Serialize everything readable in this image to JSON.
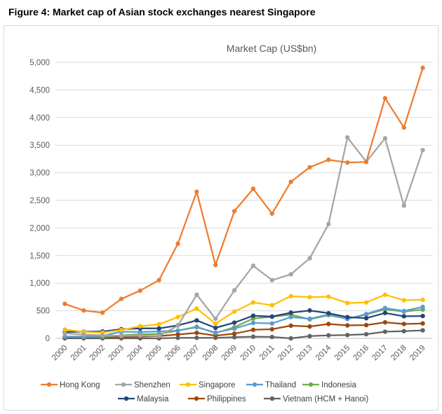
{
  "figure_title": "Figure 4: Market cap of Asian stock exchanges nearest Singapore",
  "chart_data": {
    "type": "line",
    "title": "Market Cap (US$bn)",
    "xlabel": "",
    "ylabel": "",
    "ylim": [
      0,
      5000
    ],
    "yticks": [
      0,
      500,
      1000,
      1500,
      2000,
      2500,
      3000,
      3500,
      4000,
      4500,
      5000
    ],
    "ytick_labels": [
      "0",
      "500",
      "1,000",
      "1,500",
      "2,000",
      "2,500",
      "3,000",
      "3,500",
      "4,000",
      "4,500",
      "5,000"
    ],
    "grid": true,
    "legend_position": "bottom",
    "categories": [
      "2000",
      "2001",
      "2002",
      "2003",
      "2004",
      "2005",
      "2006",
      "2007",
      "2008",
      "2009",
      "2010",
      "2011",
      "2012",
      "2013",
      "2014",
      "2015",
      "2016",
      "2017",
      "2018",
      "2019"
    ],
    "series": [
      {
        "name": "Hong Kong",
        "color": "#ED7D31",
        "values": [
          625,
          505,
          465,
          715,
          865,
          1055,
          1715,
          2655,
          1330,
          2305,
          2710,
          2260,
          2835,
          3100,
          3235,
          3185,
          3195,
          4350,
          3820,
          4900
        ]
      },
      {
        "name": "Shenzhen",
        "color": "#A5A5A5",
        "values": [
          90,
          70,
          55,
          45,
          50,
          45,
          230,
          790,
          355,
          870,
          1315,
          1055,
          1160,
          1450,
          2070,
          3640,
          3200,
          3625,
          2405,
          3410
        ]
      },
      {
        "name": "Singapore",
        "color": "#FFC000",
        "values": [
          160,
          115,
          105,
          150,
          220,
          255,
          385,
          540,
          265,
          485,
          650,
          600,
          765,
          745,
          755,
          640,
          650,
          790,
          690,
          700
        ]
      },
      {
        "name": "Thailand",
        "color": "#5B9BD5",
        "values": [
          30,
          35,
          45,
          120,
          115,
          125,
          140,
          200,
          105,
          175,
          280,
          270,
          385,
          355,
          430,
          350,
          440,
          550,
          495,
          570
        ]
      },
      {
        "name": "Indonesia",
        "color": "#70AD47",
        "values": [
          30,
          25,
          30,
          55,
          75,
          80,
          140,
          210,
          95,
          200,
          360,
          390,
          430,
          345,
          420,
          355,
          430,
          525,
          485,
          520
        ]
      },
      {
        "name": "Malaysia",
        "color": "#264478",
        "values": [
          115,
          120,
          125,
          165,
          180,
          180,
          235,
          325,
          190,
          285,
          410,
          395,
          465,
          505,
          455,
          385,
          365,
          460,
          400,
          405
        ]
      },
      {
        "name": "Philippines",
        "color": "#9E480E",
        "values": [
          20,
          25,
          20,
          25,
          30,
          40,
          70,
          100,
          50,
          85,
          155,
          165,
          230,
          215,
          260,
          235,
          240,
          290,
          260,
          270
        ]
      },
      {
        "name": "Vietnam (HCM  + Hanoi)",
        "color": "#636363",
        "values": [
          0,
          0,
          0,
          0,
          0,
          0,
          10,
          10,
          10,
          20,
          30,
          25,
          0,
          40,
          55,
          60,
          75,
          120,
          130,
          145
        ]
      }
    ]
  }
}
